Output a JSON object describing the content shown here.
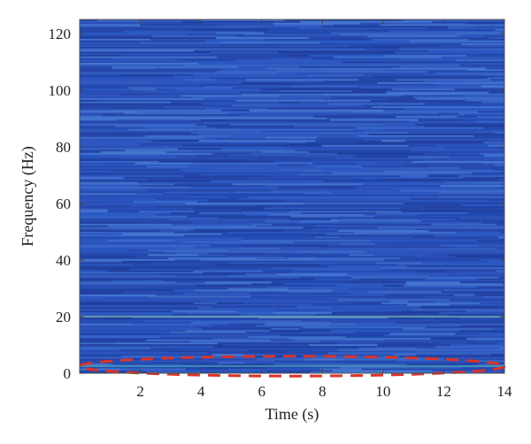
{
  "chart_data": {
    "type": "heatmap",
    "title": "",
    "xlabel": "Time (s)",
    "ylabel": "Frequency (Hz)",
    "xlim": [
      0,
      14
    ],
    "ylim": [
      0,
      125
    ],
    "x_ticks": [
      2,
      4,
      6,
      8,
      10,
      12,
      14
    ],
    "y_ticks": [
      0,
      20,
      40,
      60,
      80,
      100,
      120
    ],
    "x_tick_labels": [
      "2",
      "4",
      "6",
      "8",
      "10",
      "12",
      "14"
    ],
    "y_tick_labels": [
      "0",
      "20",
      "40",
      "60",
      "80",
      "100",
      "120"
    ],
    "colormap": "parula",
    "background_color": "#2c4fb4",
    "highlight_lines_hz": [
      2.5,
      20
    ],
    "annotation": {
      "shape": "dashed-ellipse",
      "color": "#d9342b",
      "x_range": [
        0,
        14
      ],
      "y_range": [
        -1,
        6
      ]
    },
    "grid": false
  }
}
